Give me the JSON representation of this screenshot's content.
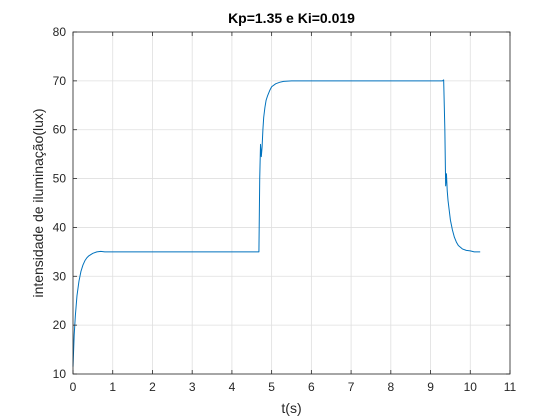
{
  "chart_data": {
    "type": "line",
    "title": "Kp=1.35 e Ki=0.019",
    "xlabel": "t(s)",
    "ylabel": "intensidade de iluminação(lux)",
    "xlim": [
      0,
      11
    ],
    "ylim": [
      10,
      80
    ],
    "xticks": [
      0,
      1,
      2,
      3,
      4,
      5,
      6,
      7,
      8,
      9,
      10,
      11
    ],
    "yticks": [
      10,
      20,
      30,
      40,
      50,
      60,
      70,
      80
    ],
    "grid": true,
    "legend": "none",
    "series": [
      {
        "color": "#0072BD",
        "x": [
          0.0,
          0.03,
          0.06,
          0.1,
          0.15,
          0.2,
          0.25,
          0.3,
          0.35,
          0.4,
          0.5,
          0.6,
          0.7,
          0.8,
          1.0,
          1.5,
          2.0,
          2.5,
          3.0,
          3.5,
          4.0,
          4.5,
          4.68,
          4.7,
          4.72,
          4.74,
          4.76,
          4.78,
          4.8,
          4.83,
          4.86,
          4.9,
          4.95,
          5.0,
          5.1,
          5.2,
          5.3,
          5.5,
          6.0,
          6.5,
          7.0,
          7.5,
          8.0,
          8.5,
          9.0,
          9.3,
          9.33,
          9.36,
          9.38,
          9.4,
          9.42,
          9.44,
          9.47,
          9.5,
          9.55,
          9.6,
          9.65,
          9.7,
          9.8,
          9.9,
          10.0,
          10.1,
          10.2,
          10.25
        ],
        "y": [
          11.5,
          18,
          22,
          26,
          29,
          31,
          32.3,
          33.2,
          33.8,
          34.2,
          34.7,
          35.0,
          35.1,
          35.0,
          35.0,
          35.0,
          35.0,
          35.0,
          35.0,
          35.0,
          35.0,
          35.0,
          35.0,
          50.0,
          57.0,
          54.5,
          56.5,
          60.0,
          62.5,
          64.5,
          66.0,
          67.0,
          68.0,
          68.8,
          69.4,
          69.7,
          69.9,
          70.0,
          70.0,
          70.0,
          70.0,
          70.0,
          70.0,
          70.0,
          70.0,
          70.0,
          70.2,
          60.0,
          48.5,
          51.0,
          47.5,
          45.5,
          43.5,
          41.5,
          39.5,
          38.0,
          37.0,
          36.3,
          35.6,
          35.3,
          35.2,
          35.0,
          35.0,
          35.0
        ]
      }
    ]
  }
}
